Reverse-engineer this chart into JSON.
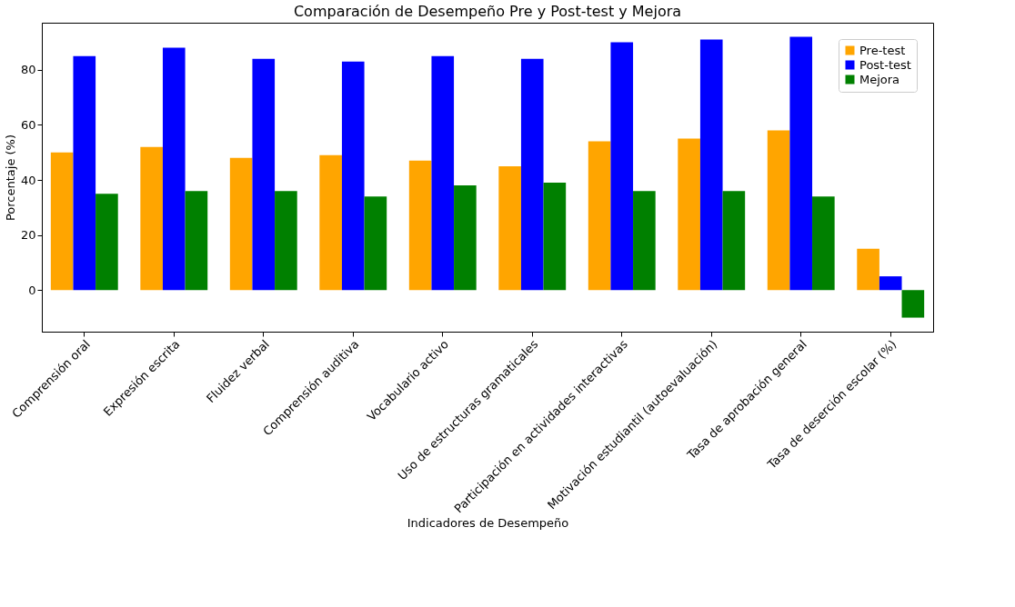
{
  "chart_data": {
    "type": "bar",
    "title": "Comparación de Desempeño Pre y Post-test y Mejora",
    "xlabel": "Indicadores de Desempeño",
    "ylabel": "Porcentaje (%)",
    "categories": [
      "Comprensión oral",
      "Expresión escrita",
      "Fluidez verbal",
      "Comprensión auditiva",
      "Vocabulario activo",
      "Uso de estructuras gramaticales",
      "Participación en actividades interactivas",
      "Motivación estudiantil (autoevaluación)",
      "Tasa de aprobación general",
      "Tasa de deserción escolar (%)"
    ],
    "series": [
      {
        "name": "Pre-test",
        "color": "#ffa500",
        "values": [
          50,
          52,
          48,
          49,
          47,
          45,
          54,
          55,
          58,
          15
        ]
      },
      {
        "name": "Post-test",
        "color": "#0000ff",
        "values": [
          85,
          88,
          84,
          83,
          85,
          84,
          90,
          91,
          92,
          5
        ]
      },
      {
        "name": "Mejora",
        "color": "#008000",
        "values": [
          35,
          36,
          36,
          34,
          38,
          39,
          36,
          36,
          34,
          -10
        ]
      }
    ],
    "ylim": [
      -15.1,
      97.1
    ],
    "yticks": [
      0,
      20,
      40,
      60,
      80
    ],
    "grid": false,
    "legend": "top right"
  }
}
